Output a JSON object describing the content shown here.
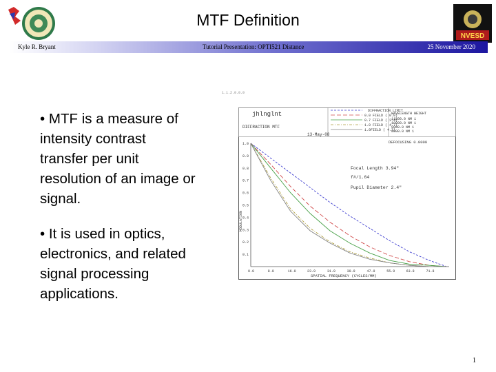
{
  "slide": {
    "title": "MTF Definition",
    "author": "Kyle R. Bryant",
    "course": "Tutorial Presentation:  OPTI521 Distance",
    "date": "25 November 2020",
    "page_number": "1"
  },
  "logos": {
    "left_icon": "university-seal-icon",
    "right_icon": "nvesd-logo-icon",
    "right_text": "NVESD"
  },
  "bullets": [
    "• MTF is a measure of intensity contrast transfer per unit resolution of an image or signal.",
    "• It is used in optics, electronics, and related signal processing applications."
  ],
  "bullet_lines": [
    [
      "• MTF is a measure of",
      "intensity contrast",
      "transfer per unit",
      "resolution of an image or",
      "signal."
    ],
    [
      "• It is used in optics,",
      "electronics, and related",
      "signal processing",
      "applications."
    ]
  ],
  "figure": {
    "file": "jhlnglnt",
    "plot_title": "DIFFRACTION MTF",
    "date": "13-May-08",
    "legend_header": "DIFFRACTION LIMIT",
    "legend_items": [
      "0.0 FIELD ( 0.0)",
      "0.7 FIELD ( 3.4)",
      "1.0 FIELD ( 4.7)",
      "1.0FIELD ( 4.7)"
    ],
    "wavelength_header": "WAVELENGTH   WEIGHT",
    "wavelength_rows": [
      "11500.0 NM   1",
      "10000.0 NM   1",
      "9000.0 NM   1",
      "8000.0 NM   1"
    ],
    "defocus": "DEFOCUSING  0.0000",
    "focal_length": "Focal Length 3.94\"",
    "fnum": "f#/1.64",
    "pupil": "Pupil Diameter 2.4\"",
    "ylabel": "MODULATION",
    "xlabel": "SPATIAL FREQUENCY (CYCLES/MM)",
    "tiny_tag": "1.1.2.0.0.0"
  },
  "chart_data": {
    "type": "line",
    "title": "DIFFRACTION MTF",
    "xlabel": "SPATIAL FREQUENCY (CYCLES/MM)",
    "ylabel": "MODULATION",
    "xlim": [
      0,
      80
    ],
    "ylim": [
      0,
      1.0
    ],
    "x_ticks": [
      "0.0",
      "8.0",
      "16.0",
      "23.9",
      "31.9",
      "39.9",
      "47.9",
      "55.9",
      "63.8",
      "71.8"
    ],
    "y_ticks": [
      "0.1",
      "0.2",
      "0.3",
      "0.4",
      "0.5",
      "0.6",
      "0.7",
      "0.8",
      "0.9",
      "1.0"
    ],
    "x": [
      0,
      8,
      16,
      24,
      32,
      40,
      48,
      56,
      64,
      72,
      79
    ],
    "series": [
      {
        "name": "DIFFRACTION LIMIT",
        "values": [
          1.0,
          0.88,
          0.76,
          0.64,
          0.52,
          0.41,
          0.31,
          0.21,
          0.12,
          0.05,
          0.0
        ]
      },
      {
        "name": "0.0 FIELD ( 0.0)",
        "values": [
          1.0,
          0.83,
          0.65,
          0.49,
          0.36,
          0.25,
          0.16,
          0.09,
          0.04,
          0.01,
          0.0
        ]
      },
      {
        "name": "0.7 FIELD ( 3.4)",
        "values": [
          1.0,
          0.8,
          0.6,
          0.43,
          0.29,
          0.19,
          0.11,
          0.05,
          0.02,
          0.01,
          0.0
        ]
      },
      {
        "name": "1.0 FIELD ( 4.7)",
        "values": [
          1.0,
          0.72,
          0.47,
          0.31,
          0.2,
          0.12,
          0.07,
          0.03,
          0.01,
          0.0,
          0.0
        ]
      },
      {
        "name": "1.0FIELD ( 4.7)",
        "values": [
          1.0,
          0.7,
          0.45,
          0.29,
          0.19,
          0.11,
          0.06,
          0.03,
          0.01,
          0.0,
          0.0
        ]
      }
    ],
    "colors": [
      "#3a3acf",
      "#d04848",
      "#48a048",
      "#b0a040",
      "#808080"
    ],
    "grid": false,
    "legend": "top-right"
  }
}
